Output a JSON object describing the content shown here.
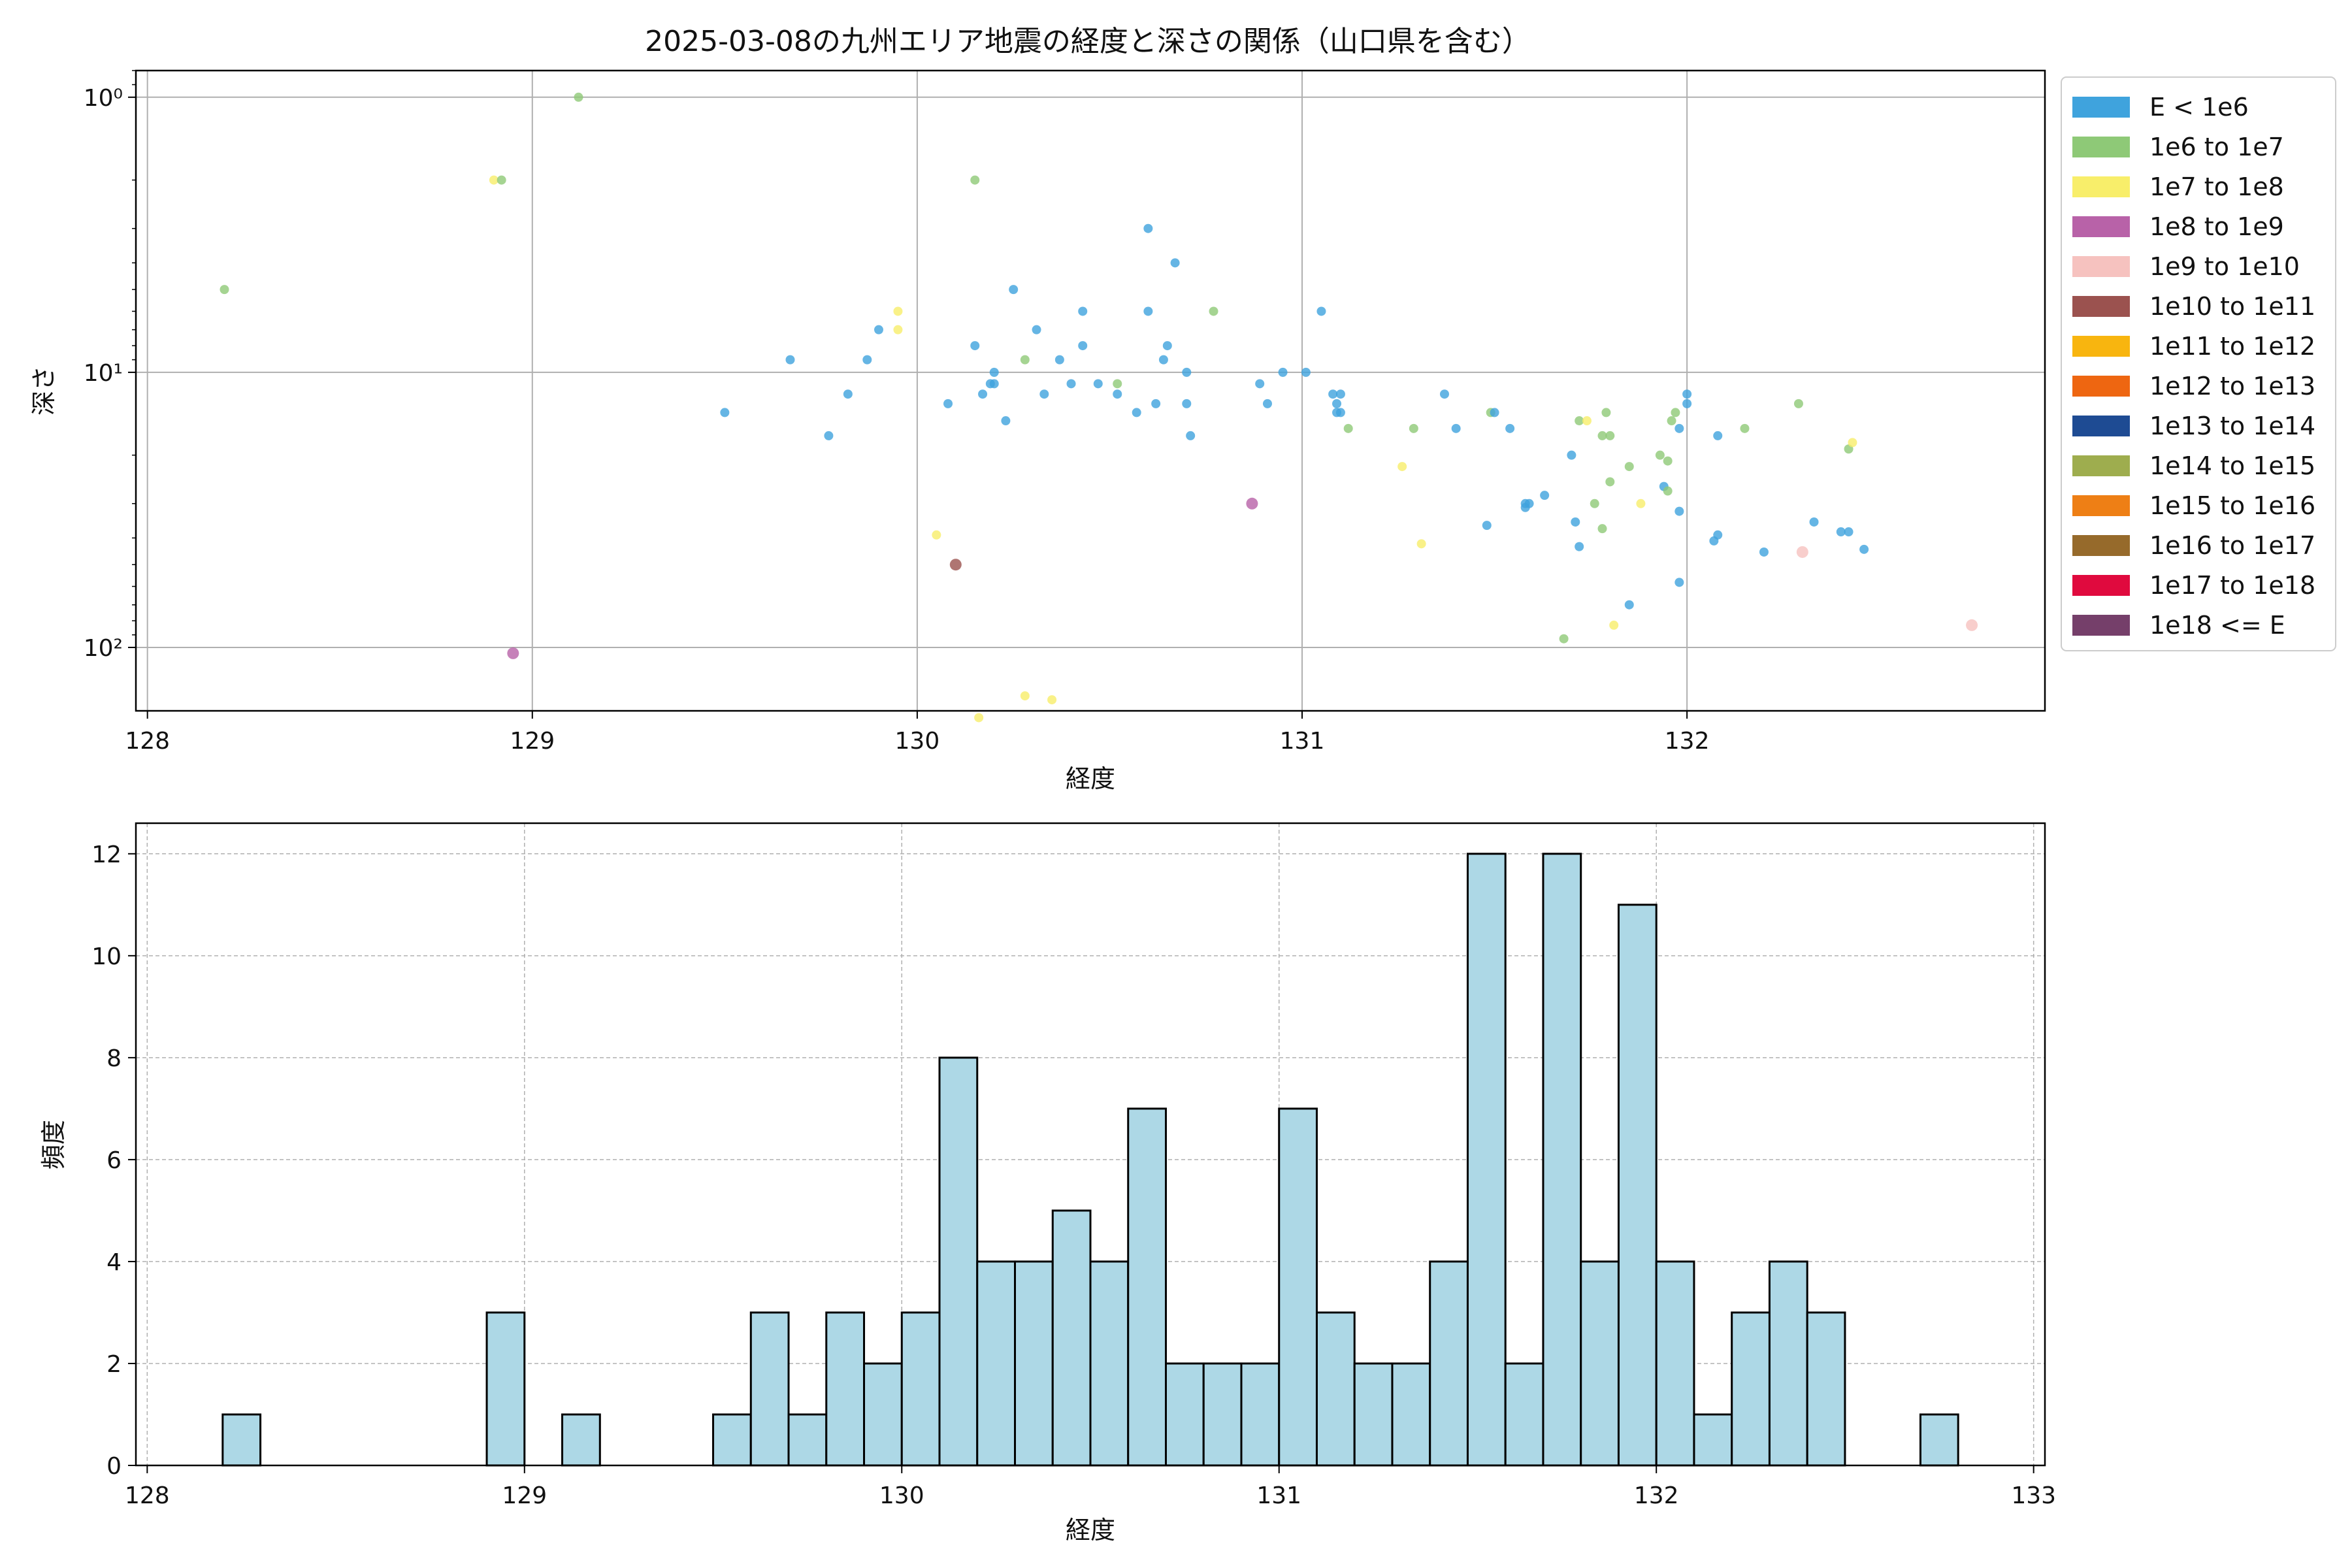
{
  "chart_data": [
    {
      "type": "scatter",
      "title": "2025-03-08の九州エリア地震の経度と深さの関係（山口県を含む）",
      "xlabel": "経度",
      "ylabel": "深さ",
      "xlim": [
        127.97,
        132.93
      ],
      "ylim": [
        170,
        0.8
      ],
      "y_scale": "log",
      "y_inverted": true,
      "x_ticks": [
        128,
        129,
        130,
        131,
        132
      ],
      "x_tick_labels": [
        "128",
        "129",
        "130",
        "131",
        "132"
      ],
      "y_ticks": [
        1,
        10,
        100
      ],
      "y_tick_labels": [
        "10⁰",
        "10¹",
        "10²"
      ],
      "grid": true,
      "legend_position": "outside-right",
      "legend": [
        {
          "label": "E < 1e6",
          "color": "#3fa3dd"
        },
        {
          "label": "1e6 to 1e7",
          "color": "#8ec977"
        },
        {
          "label": "1e7 to 1e8",
          "color": "#f8ee6a"
        },
        {
          "label": "1e8 to 1e9",
          "color": "#b862a8"
        },
        {
          "label": "1e9 to 1e10",
          "color": "#f6c2bf"
        },
        {
          "label": "1e10 to 1e11",
          "color": "#9b524f"
        },
        {
          "label": "1e11 to 1e12",
          "color": "#f8b50f"
        },
        {
          "label": "1e12 to 1e13",
          "color": "#ee6611"
        },
        {
          "label": "1e13 to 1e14",
          "color": "#1e4b93"
        },
        {
          "label": "1e14 to 1e15",
          "color": "#9ead4e"
        },
        {
          "label": "1e15 to 1e16",
          "color": "#ee7f15"
        },
        {
          "label": "1e16 to 1e17",
          "color": "#966a2b"
        },
        {
          "label": "1e17 to 1e18",
          "color": "#e00a3e"
        },
        {
          "label": "1e18 <= E",
          "color": "#753f6a"
        }
      ],
      "points": [
        {
          "x": 128.2,
          "y": 5,
          "c": 1
        },
        {
          "x": 128.9,
          "y": 2,
          "c": 2
        },
        {
          "x": 128.92,
          "y": 2,
          "c": 1
        },
        {
          "x": 128.95,
          "y": 105,
          "c": 3
        },
        {
          "x": 129.12,
          "y": 1,
          "c": 1
        },
        {
          "x": 129.5,
          "y": 14,
          "c": 0
        },
        {
          "x": 129.67,
          "y": 9,
          "c": 0
        },
        {
          "x": 129.77,
          "y": 17,
          "c": 0
        },
        {
          "x": 129.82,
          "y": 12,
          "c": 0
        },
        {
          "x": 129.87,
          "y": 9,
          "c": 0
        },
        {
          "x": 129.9,
          "y": 7,
          "c": 0
        },
        {
          "x": 129.95,
          "y": 6,
          "c": 2
        },
        {
          "x": 129.95,
          "y": 7,
          "c": 2
        },
        {
          "x": 130.05,
          "y": 39,
          "c": 2
        },
        {
          "x": 130.08,
          "y": 13,
          "c": 0
        },
        {
          "x": 130.1,
          "y": 50,
          "c": 5
        },
        {
          "x": 130.15,
          "y": 2,
          "c": 1
        },
        {
          "x": 130.15,
          "y": 8,
          "c": 0
        },
        {
          "x": 130.17,
          "y": 12,
          "c": 0
        },
        {
          "x": 130.19,
          "y": 11,
          "c": 0
        },
        {
          "x": 130.2,
          "y": 10,
          "c": 0
        },
        {
          "x": 130.2,
          "y": 11,
          "c": 0
        },
        {
          "x": 130.16,
          "y": 180,
          "c": 2
        },
        {
          "x": 130.25,
          "y": 5,
          "c": 0
        },
        {
          "x": 130.23,
          "y": 15,
          "c": 0
        },
        {
          "x": 130.28,
          "y": 9,
          "c": 1
        },
        {
          "x": 130.28,
          "y": 150,
          "c": 2
        },
        {
          "x": 130.31,
          "y": 7,
          "c": 0
        },
        {
          "x": 130.33,
          "y": 12,
          "c": 0
        },
        {
          "x": 130.37,
          "y": 9,
          "c": 0
        },
        {
          "x": 130.4,
          "y": 11,
          "c": 0
        },
        {
          "x": 130.43,
          "y": 6,
          "c": 0
        },
        {
          "x": 130.43,
          "y": 8,
          "c": 0
        },
        {
          "x": 130.35,
          "y": 155,
          "c": 2
        },
        {
          "x": 130.47,
          "y": 11,
          "c": 0
        },
        {
          "x": 130.52,
          "y": 11,
          "c": 1
        },
        {
          "x": 130.52,
          "y": 12,
          "c": 0
        },
        {
          "x": 130.57,
          "y": 14,
          "c": 0
        },
        {
          "x": 130.6,
          "y": 3,
          "c": 0
        },
        {
          "x": 130.6,
          "y": 6,
          "c": 0
        },
        {
          "x": 130.62,
          "y": 13,
          "c": 0
        },
        {
          "x": 130.64,
          "y": 9,
          "c": 0
        },
        {
          "x": 130.65,
          "y": 8,
          "c": 0
        },
        {
          "x": 130.67,
          "y": 4,
          "c": 0
        },
        {
          "x": 130.7,
          "y": 10,
          "c": 0
        },
        {
          "x": 130.7,
          "y": 13,
          "c": 0
        },
        {
          "x": 130.71,
          "y": 17,
          "c": 0
        },
        {
          "x": 130.77,
          "y": 6,
          "c": 1
        },
        {
          "x": 130.87,
          "y": 30,
          "c": 3
        },
        {
          "x": 130.89,
          "y": 11,
          "c": 0
        },
        {
          "x": 130.91,
          "y": 13,
          "c": 0
        },
        {
          "x": 130.95,
          "y": 10,
          "c": 0
        },
        {
          "x": 131.01,
          "y": 10,
          "c": 0
        },
        {
          "x": 131.05,
          "y": 6,
          "c": 0
        },
        {
          "x": 131.08,
          "y": 12,
          "c": 0
        },
        {
          "x": 131.09,
          "y": 13,
          "c": 0
        },
        {
          "x": 131.09,
          "y": 14,
          "c": 0
        },
        {
          "x": 131.1,
          "y": 14,
          "c": 0
        },
        {
          "x": 131.1,
          "y": 12,
          "c": 0
        },
        {
          "x": 131.12,
          "y": 16,
          "c": 1
        },
        {
          "x": 131.26,
          "y": 22,
          "c": 2
        },
        {
          "x": 131.29,
          "y": 16,
          "c": 1
        },
        {
          "x": 131.31,
          "y": 42,
          "c": 2
        },
        {
          "x": 131.37,
          "y": 12,
          "c": 0
        },
        {
          "x": 131.4,
          "y": 16,
          "c": 0
        },
        {
          "x": 131.48,
          "y": 36,
          "c": 0
        },
        {
          "x": 131.49,
          "y": 14,
          "c": 1
        },
        {
          "x": 131.5,
          "y": 14,
          "c": 0
        },
        {
          "x": 131.54,
          "y": 16,
          "c": 0
        },
        {
          "x": 131.58,
          "y": 30,
          "c": 0
        },
        {
          "x": 131.58,
          "y": 31,
          "c": 0
        },
        {
          "x": 131.59,
          "y": 30,
          "c": 0
        },
        {
          "x": 131.63,
          "y": 28,
          "c": 0
        },
        {
          "x": 131.68,
          "y": 93,
          "c": 1
        },
        {
          "x": 131.7,
          "y": 20,
          "c": 0
        },
        {
          "x": 131.71,
          "y": 35,
          "c": 0
        },
        {
          "x": 131.72,
          "y": 15,
          "c": 1
        },
        {
          "x": 131.72,
          "y": 43,
          "c": 0
        },
        {
          "x": 131.74,
          "y": 15,
          "c": 2
        },
        {
          "x": 131.76,
          "y": 30,
          "c": 1
        },
        {
          "x": 131.78,
          "y": 17,
          "c": 1
        },
        {
          "x": 131.78,
          "y": 37,
          "c": 1
        },
        {
          "x": 131.79,
          "y": 14,
          "c": 1
        },
        {
          "x": 131.8,
          "y": 17,
          "c": 1
        },
        {
          "x": 131.8,
          "y": 25,
          "c": 1
        },
        {
          "x": 131.81,
          "y": 83,
          "c": 2
        },
        {
          "x": 131.85,
          "y": 70,
          "c": 0
        },
        {
          "x": 131.85,
          "y": 22,
          "c": 1
        },
        {
          "x": 131.88,
          "y": 30,
          "c": 2
        },
        {
          "x": 131.93,
          "y": 20,
          "c": 1
        },
        {
          "x": 131.94,
          "y": 26,
          "c": 0
        },
        {
          "x": 131.95,
          "y": 27,
          "c": 1
        },
        {
          "x": 131.95,
          "y": 21,
          "c": 1
        },
        {
          "x": 131.96,
          "y": 15,
          "c": 1
        },
        {
          "x": 131.97,
          "y": 14,
          "c": 1
        },
        {
          "x": 131.98,
          "y": 16,
          "c": 0
        },
        {
          "x": 131.98,
          "y": 32,
          "c": 0
        },
        {
          "x": 131.98,
          "y": 58,
          "c": 0
        },
        {
          "x": 132.0,
          "y": 13,
          "c": 0
        },
        {
          "x": 132.0,
          "y": 12,
          "c": 0
        },
        {
          "x": 132.07,
          "y": 41,
          "c": 0
        },
        {
          "x": 132.08,
          "y": 39,
          "c": 0
        },
        {
          "x": 132.08,
          "y": 17,
          "c": 0
        },
        {
          "x": 132.15,
          "y": 16,
          "c": 1
        },
        {
          "x": 132.2,
          "y": 45,
          "c": 0
        },
        {
          "x": 132.29,
          "y": 13,
          "c": 1
        },
        {
          "x": 132.3,
          "y": 45,
          "c": 4
        },
        {
          "x": 132.33,
          "y": 35,
          "c": 0
        },
        {
          "x": 132.4,
          "y": 38,
          "c": 0
        },
        {
          "x": 132.42,
          "y": 19,
          "c": 1
        },
        {
          "x": 132.42,
          "y": 38,
          "c": 0
        },
        {
          "x": 132.43,
          "y": 18,
          "c": 2
        },
        {
          "x": 132.46,
          "y": 44,
          "c": 0
        },
        {
          "x": 132.74,
          "y": 83,
          "c": 4
        }
      ]
    },
    {
      "type": "bar",
      "subtype": "histogram",
      "xlabel": "経度",
      "ylabel": "頻度",
      "xlim": [
        127.97,
        133.03
      ],
      "ylim": [
        0,
        12.6
      ],
      "x_ticks": [
        128,
        129,
        130,
        131,
        132,
        133
      ],
      "x_tick_labels": [
        "128",
        "129",
        "130",
        "131",
        "132",
        "133"
      ],
      "y_ticks": [
        0,
        2,
        4,
        6,
        8,
        10,
        12
      ],
      "y_tick_labels": [
        "0",
        "2",
        "4",
        "6",
        "8",
        "10",
        "12"
      ],
      "grid": true,
      "bar_color": "#add8e6",
      "edge_color": "#000000",
      "bin_start": 128.2,
      "bin_width": 0.1,
      "counts": [
        1,
        0,
        0,
        0,
        0,
        0,
        0,
        3,
        0,
        1,
        0,
        0,
        0,
        1,
        3,
        1,
        3,
        2,
        3,
        8,
        4,
        4,
        5,
        4,
        7,
        2,
        2,
        2,
        7,
        3,
        2,
        2,
        4,
        12,
        2,
        12,
        4,
        11,
        4,
        1,
        3,
        4,
        3,
        0,
        0,
        1
      ]
    }
  ]
}
